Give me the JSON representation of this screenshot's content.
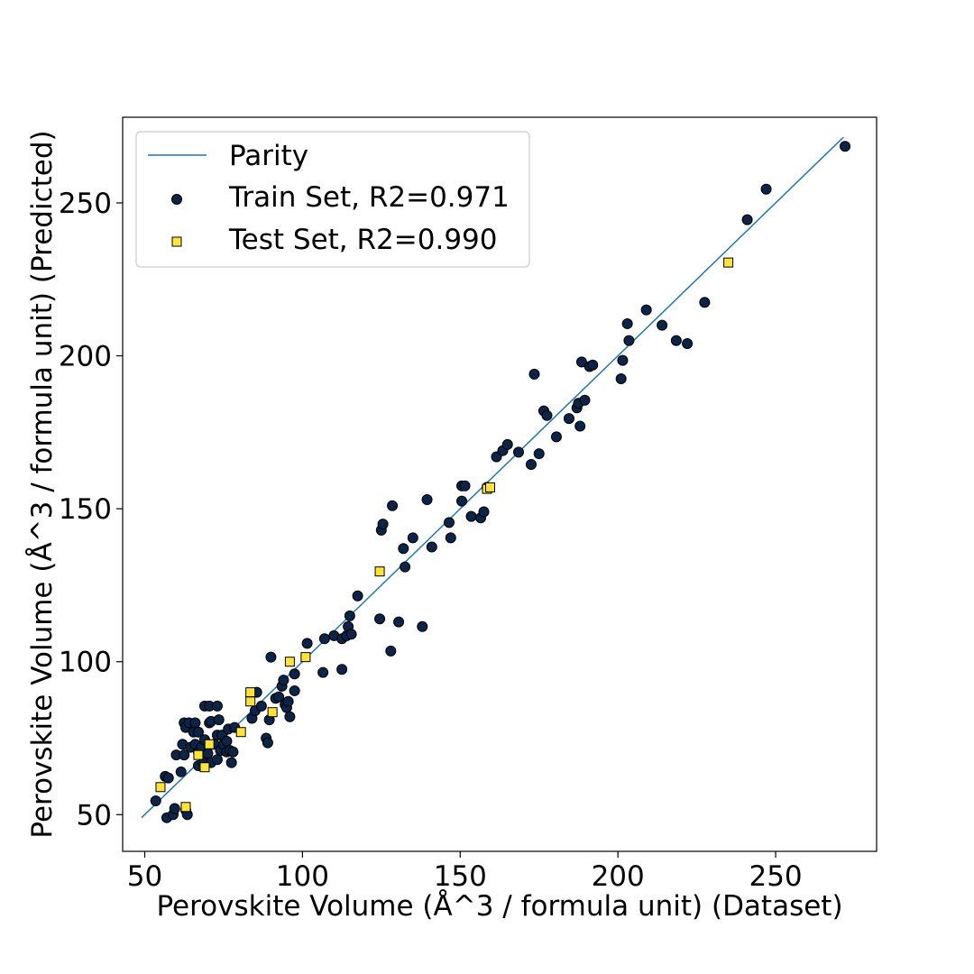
{
  "chart_data": {
    "type": "scatter",
    "title": "",
    "xlabel": "Perovskite Volume (Å^3 / formula unit) (Dataset)",
    "ylabel": "Perovskite Volume (Å^3 / formula unit) (Predicted)",
    "xlim": [
      43,
      282
    ],
    "ylim": [
      38,
      278
    ],
    "xticks": [
      50,
      100,
      150,
      200,
      250
    ],
    "yticks": [
      50,
      100,
      150,
      200,
      250
    ],
    "grid": false,
    "legend_position": "top-left",
    "parity": {
      "name": "Parity",
      "x": [
        49,
        271.5
      ],
      "y": [
        49,
        271.5
      ],
      "color": "#1f77b4"
    },
    "series": [
      {
        "name": "Train Set, R2=0.971",
        "marker": "circle",
        "color": "#0b2447",
        "points": [
          [
            53.5,
            54.5
          ],
          [
            56.5,
            62.5
          ],
          [
            57.5,
            62
          ],
          [
            57,
            49
          ],
          [
            59,
            50
          ],
          [
            59.5,
            52
          ],
          [
            60,
            69.5
          ],
          [
            61.5,
            64
          ],
          [
            62,
            73
          ],
          [
            62.5,
            80
          ],
          [
            62.5,
            69.5
          ],
          [
            63,
            78.5
          ],
          [
            63,
            51.5
          ],
          [
            63.5,
            50
          ],
          [
            64,
            80
          ],
          [
            64.5,
            72
          ],
          [
            65.5,
            77
          ],
          [
            66,
            80
          ],
          [
            66,
            73
          ],
          [
            67,
            66
          ],
          [
            67,
            70.5
          ],
          [
            67,
            77
          ],
          [
            68,
            72
          ],
          [
            68.5,
            67
          ],
          [
            69,
            74.5
          ],
          [
            69,
            85.5
          ],
          [
            70,
            70
          ],
          [
            70.5,
            80
          ],
          [
            70.5,
            85.5
          ],
          [
            71,
            67
          ],
          [
            71,
            80.5
          ],
          [
            72,
            73
          ],
          [
            73,
            76
          ],
          [
            73,
            68
          ],
          [
            73,
            85.5
          ],
          [
            73.5,
            81
          ],
          [
            74,
            71
          ],
          [
            74.5,
            76
          ],
          [
            75,
            73
          ],
          [
            76,
            70.5
          ],
          [
            76,
            74
          ],
          [
            76.5,
            78
          ],
          [
            77,
            71
          ],
          [
            77.5,
            67
          ],
          [
            78,
            70.5
          ],
          [
            78.5,
            78.5
          ],
          [
            84,
            81.5
          ],
          [
            85,
            84
          ],
          [
            85.5,
            90
          ],
          [
            87,
            85.5
          ],
          [
            88.5,
            75
          ],
          [
            89,
            73.5
          ],
          [
            89.5,
            81
          ],
          [
            90,
            101.5
          ],
          [
            91.5,
            88
          ],
          [
            92.5,
            88.5
          ],
          [
            93.5,
            92
          ],
          [
            94,
            94
          ],
          [
            94.5,
            86
          ],
          [
            95,
            85
          ],
          [
            95.5,
            87
          ],
          [
            96,
            82
          ],
          [
            97.5,
            96
          ],
          [
            97.5,
            90.5
          ],
          [
            101.5,
            106
          ],
          [
            106.5,
            96.5
          ],
          [
            107,
            107.5
          ],
          [
            110,
            108.5
          ],
          [
            112.5,
            97.5
          ],
          [
            112.5,
            107.5
          ],
          [
            114,
            108.5
          ],
          [
            114.5,
            111.5
          ],
          [
            115,
            115
          ],
          [
            115.5,
            109
          ],
          [
            117.5,
            121.5
          ],
          [
            124.5,
            114
          ],
          [
            125,
            143
          ],
          [
            125.5,
            145
          ],
          [
            128,
            103.5
          ],
          [
            128.5,
            151
          ],
          [
            130.5,
            113
          ],
          [
            132,
            137
          ],
          [
            132.5,
            131
          ],
          [
            135,
            140.5
          ],
          [
            138,
            111.5
          ],
          [
            139.5,
            153
          ],
          [
            141,
            137.5
          ],
          [
            146.5,
            145.5
          ],
          [
            147,
            140.5
          ],
          [
            150.5,
            152.5
          ],
          [
            150.5,
            157.5
          ],
          [
            151.5,
            157.5
          ],
          [
            153.5,
            147.5
          ],
          [
            156.5,
            147
          ],
          [
            157.5,
            149
          ],
          [
            158.5,
            157
          ],
          [
            161.5,
            167
          ],
          [
            163.5,
            169
          ],
          [
            165,
            171
          ],
          [
            168.5,
            168.5
          ],
          [
            172.5,
            164.5
          ],
          [
            173.5,
            194
          ],
          [
            175,
            168
          ],
          [
            176.5,
            182
          ],
          [
            177.5,
            180.5
          ],
          [
            180.5,
            173.5
          ],
          [
            184.5,
            179.5
          ],
          [
            187,
            183
          ],
          [
            187.5,
            184.5
          ],
          [
            188,
            177
          ],
          [
            188.5,
            198
          ],
          [
            189.5,
            185.5
          ],
          [
            191,
            196.5
          ],
          [
            192,
            197
          ],
          [
            201,
            192.5
          ],
          [
            201.5,
            198.5
          ],
          [
            203,
            210.5
          ],
          [
            203.5,
            205
          ],
          [
            209,
            215
          ],
          [
            214,
            210
          ],
          [
            218.5,
            205
          ],
          [
            222,
            204
          ],
          [
            227.5,
            217.5
          ],
          [
            241,
            244.5
          ],
          [
            247,
            254.5
          ],
          [
            272,
            268.5
          ]
        ]
      },
      {
        "name": "Test Set, R2=0.990",
        "marker": "square",
        "color": "#fde33a",
        "points": [
          [
            55,
            59
          ],
          [
            63,
            52.5
          ],
          [
            67,
            69.5
          ],
          [
            69,
            65.5
          ],
          [
            70.5,
            73
          ],
          [
            80.5,
            77
          ],
          [
            83.5,
            90
          ],
          [
            83.5,
            87
          ],
          [
            90.5,
            83.5
          ],
          [
            96,
            100
          ],
          [
            101,
            101.5
          ],
          [
            124.5,
            129.5
          ],
          [
            158.5,
            156.5
          ],
          [
            159.5,
            157
          ],
          [
            235,
            230.5
          ]
        ]
      }
    ]
  }
}
